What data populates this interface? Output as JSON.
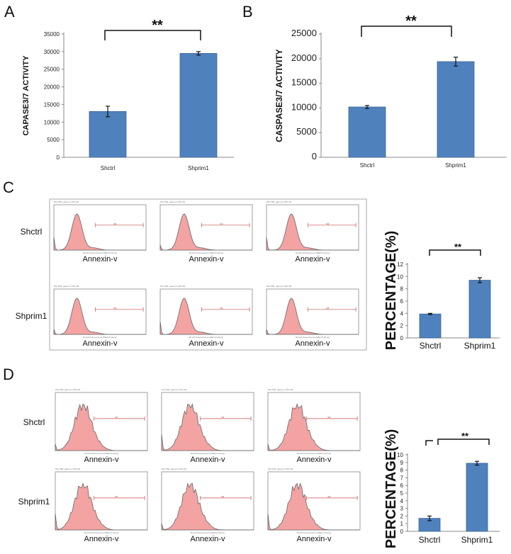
{
  "panel_labels": {
    "A": "A",
    "B": "B",
    "C": "C",
    "D": "D"
  },
  "colors": {
    "bar": "#4f81bd",
    "bar_edge": "#3a6596",
    "hist_fill": "#f4a3a3",
    "hist_edge": "#666666",
    "gate": "#c0504d"
  },
  "chart_data": [
    {
      "panel": "A",
      "type": "bar",
      "categories": [
        "Shctrl",
        "Shprim1"
      ],
      "values": [
        13000,
        29500
      ],
      "errors": [
        1500,
        500
      ],
      "ylabel": "CAPASE3/7 ACTIVITY",
      "ylim": [
        0,
        35000
      ],
      "yticks": [
        "0",
        "5000",
        "10000",
        "15000",
        "20000",
        "25000",
        "30000",
        "35000"
      ],
      "significance": "**"
    },
    {
      "panel": "B",
      "type": "bar",
      "categories": [
        "Shctrl",
        "Shprim1"
      ],
      "values": [
        10200,
        19400
      ],
      "errors": [
        300,
        900
      ],
      "ylabel": "CASPASE3/7 ACTIVITY",
      "ylim": [
        0,
        25000
      ],
      "yticks": [
        "0",
        "5000",
        "10000",
        "15000",
        "20000",
        "25000"
      ],
      "significance": "**"
    },
    {
      "panel": "C",
      "type": "bar",
      "categories": [
        "Shctrl",
        "Shprim1"
      ],
      "values": [
        3.9,
        9.4
      ],
      "errors": [
        0.1,
        0.4
      ],
      "ylabel": "PERCENTAGE(%)",
      "ylim": [
        0,
        12
      ],
      "yticks": [
        "0",
        "2",
        "4",
        "6",
        "8",
        "10",
        "12"
      ],
      "significance": "**"
    },
    {
      "panel": "D",
      "type": "bar",
      "categories": [
        "Shctrl",
        "Shprim1"
      ],
      "values": [
        1.7,
        8.9
      ],
      "errors": [
        0.3,
        0.25
      ],
      "ylabel": "PERCENTAGE(%)",
      "ylim": [
        0,
        10
      ],
      "yticks": [
        "0",
        "1",
        "2",
        "3",
        "4",
        "5",
        "6",
        "7",
        "8",
        "9",
        "10"
      ],
      "significance": "**"
    }
  ],
  "flow": {
    "C": {
      "row_labels": [
        "Shctrl",
        "Shprim1"
      ],
      "xlabel": "Annexin-v"
    },
    "D": {
      "row_labels": [
        "Shctrl",
        "Shprim1"
      ],
      "xlabel": "Annexin-v"
    }
  }
}
